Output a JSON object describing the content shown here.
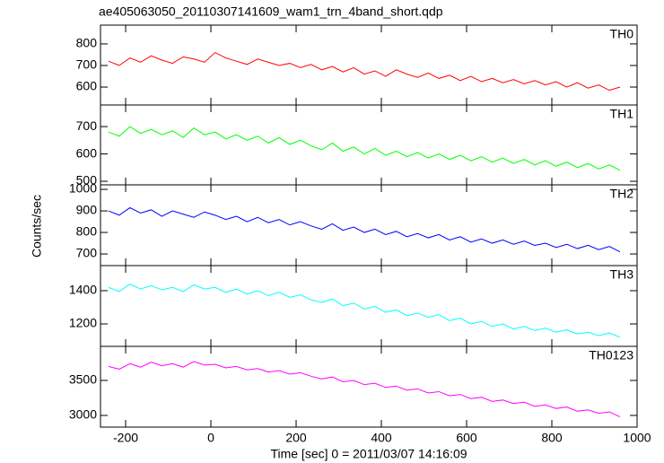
{
  "chart_data": [
    {
      "type": "line",
      "title": "ae405063050_20110307141609_wam1_trn_4band_short.qdp",
      "x": [
        -240,
        -215,
        -190,
        -165,
        -140,
        -115,
        -90,
        -65,
        -40,
        -15,
        10,
        35,
        60,
        85,
        110,
        135,
        160,
        185,
        210,
        235,
        260,
        285,
        310,
        335,
        360,
        385,
        410,
        435,
        460,
        485,
        510,
        535,
        560,
        585,
        610,
        635,
        660,
        685,
        710,
        735,
        760,
        785,
        810,
        835,
        860,
        885,
        910,
        935,
        960
      ],
      "series": [
        {
          "name": "TH0",
          "color": "#ff0000",
          "values": [
            720,
            700,
            735,
            715,
            745,
            725,
            710,
            740,
            730,
            715,
            760,
            735,
            720,
            705,
            730,
            715,
            700,
            710,
            690,
            705,
            680,
            695,
            670,
            690,
            660,
            675,
            650,
            680,
            660,
            645,
            665,
            640,
            655,
            630,
            650,
            625,
            640,
            620,
            635,
            615,
            630,
            610,
            625,
            600,
            620,
            595,
            610,
            585,
            600
          ]
        }
      ],
      "xlim": [
        -259,
        1000
      ],
      "xticks": [
        -200,
        0,
        200,
        400,
        600,
        800,
        1000
      ],
      "ylim": [
        517,
        887
      ],
      "yticks": [
        600,
        700,
        800
      ]
    },
    {
      "type": "line",
      "x": [
        -240,
        -215,
        -190,
        -165,
        -140,
        -115,
        -90,
        -65,
        -40,
        -15,
        10,
        35,
        60,
        85,
        110,
        135,
        160,
        185,
        210,
        235,
        260,
        285,
        310,
        335,
        360,
        385,
        410,
        435,
        460,
        485,
        510,
        535,
        560,
        585,
        610,
        635,
        660,
        685,
        710,
        735,
        760,
        785,
        810,
        835,
        860,
        885,
        910,
        935,
        960
      ],
      "series": [
        {
          "name": "TH1",
          "color": "#00ff00",
          "values": [
            680,
            665,
            700,
            675,
            690,
            670,
            685,
            660,
            695,
            670,
            680,
            655,
            670,
            650,
            665,
            640,
            660,
            635,
            650,
            630,
            615,
            640,
            610,
            625,
            600,
            620,
            595,
            610,
            590,
            605,
            585,
            600,
            580,
            595,
            575,
            590,
            570,
            585,
            565,
            580,
            560,
            575,
            555,
            570,
            550,
            565,
            545,
            560,
            540
          ]
        }
      ],
      "xlim": [
        -259,
        1000
      ],
      "xticks": [
        -200,
        0,
        200,
        400,
        600,
        800,
        1000
      ],
      "ylim": [
        487,
        779
      ],
      "yticks": [
        500,
        600,
        700
      ]
    },
    {
      "type": "line",
      "ylabel": "Counts/sec",
      "x": [
        -240,
        -215,
        -190,
        -165,
        -140,
        -115,
        -90,
        -65,
        -40,
        -15,
        10,
        35,
        60,
        85,
        110,
        135,
        160,
        185,
        210,
        235,
        260,
        285,
        310,
        335,
        360,
        385,
        410,
        435,
        460,
        485,
        510,
        535,
        560,
        585,
        610,
        635,
        660,
        685,
        710,
        735,
        760,
        785,
        810,
        835,
        860,
        885,
        910,
        935,
        960
      ],
      "series": [
        {
          "name": "TH2",
          "color": "#0000ff",
          "values": [
            900,
            880,
            915,
            890,
            905,
            875,
            900,
            885,
            870,
            895,
            880,
            860,
            875,
            850,
            870,
            845,
            860,
            835,
            850,
            830,
            815,
            840,
            810,
            825,
            800,
            815,
            790,
            805,
            780,
            795,
            775,
            790,
            765,
            780,
            755,
            770,
            750,
            765,
            745,
            760,
            740,
            750,
            730,
            745,
            725,
            740,
            720,
            735,
            710
          ]
        }
      ],
      "xlim": [
        -259,
        1000
      ],
      "xticks": [
        -200,
        0,
        200,
        400,
        600,
        800,
        1000
      ],
      "ylim": [
        646,
        1021
      ],
      "yticks": [
        700,
        800,
        900,
        1000
      ]
    },
    {
      "type": "line",
      "x": [
        -240,
        -215,
        -190,
        -165,
        -140,
        -115,
        -90,
        -65,
        -40,
        -15,
        10,
        35,
        60,
        85,
        110,
        135,
        160,
        185,
        210,
        235,
        260,
        285,
        310,
        335,
        360,
        385,
        410,
        435,
        460,
        485,
        510,
        535,
        560,
        585,
        610,
        635,
        660,
        685,
        710,
        735,
        760,
        785,
        810,
        835,
        860,
        885,
        910,
        935,
        960
      ],
      "series": [
        {
          "name": "TH3",
          "color": "#00ffff",
          "values": [
            1420,
            1395,
            1440,
            1410,
            1430,
            1405,
            1420,
            1395,
            1435,
            1410,
            1420,
            1390,
            1410,
            1380,
            1400,
            1370,
            1390,
            1360,
            1375,
            1345,
            1330,
            1350,
            1310,
            1325,
            1290,
            1305,
            1270,
            1285,
            1250,
            1265,
            1240,
            1255,
            1220,
            1235,
            1200,
            1215,
            1185,
            1200,
            1170,
            1185,
            1160,
            1175,
            1150,
            1165,
            1140,
            1150,
            1130,
            1145,
            1120
          ]
        }
      ],
      "xlim": [
        -259,
        1000
      ],
      "xticks": [
        -200,
        0,
        200,
        400,
        600,
        800,
        1000
      ],
      "ylim": [
        1065,
        1551
      ],
      "yticks": [
        1200,
        1400
      ]
    },
    {
      "type": "line",
      "xlabel": "Time [sec] 0 = 2011/03/07 14:16:09",
      "x": [
        -240,
        -215,
        -190,
        -165,
        -140,
        -115,
        -90,
        -65,
        -40,
        -15,
        10,
        35,
        60,
        85,
        110,
        135,
        160,
        185,
        210,
        235,
        260,
        285,
        310,
        335,
        360,
        385,
        410,
        435,
        460,
        485,
        510,
        535,
        560,
        585,
        610,
        635,
        660,
        685,
        710,
        735,
        760,
        785,
        810,
        835,
        860,
        885,
        910,
        935,
        960
      ],
      "series": [
        {
          "name": "TH0123",
          "color": "#ff00ff",
          "values": [
            3700,
            3660,
            3740,
            3690,
            3760,
            3710,
            3740,
            3690,
            3770,
            3720,
            3730,
            3680,
            3700,
            3650,
            3670,
            3620,
            3640,
            3590,
            3610,
            3560,
            3520,
            3550,
            3480,
            3500,
            3440,
            3460,
            3400,
            3420,
            3360,
            3380,
            3320,
            3340,
            3280,
            3300,
            3240,
            3260,
            3200,
            3220,
            3170,
            3190,
            3130,
            3150,
            3100,
            3120,
            3060,
            3080,
            3030,
            3050,
            2980
          ]
        }
      ],
      "xlim": [
        -259,
        1000
      ],
      "xticks": [
        -200,
        0,
        200,
        400,
        600,
        800,
        1000
      ],
      "ylim": [
        2833,
        3987
      ],
      "yticks": [
        3000,
        3500
      ]
    }
  ]
}
